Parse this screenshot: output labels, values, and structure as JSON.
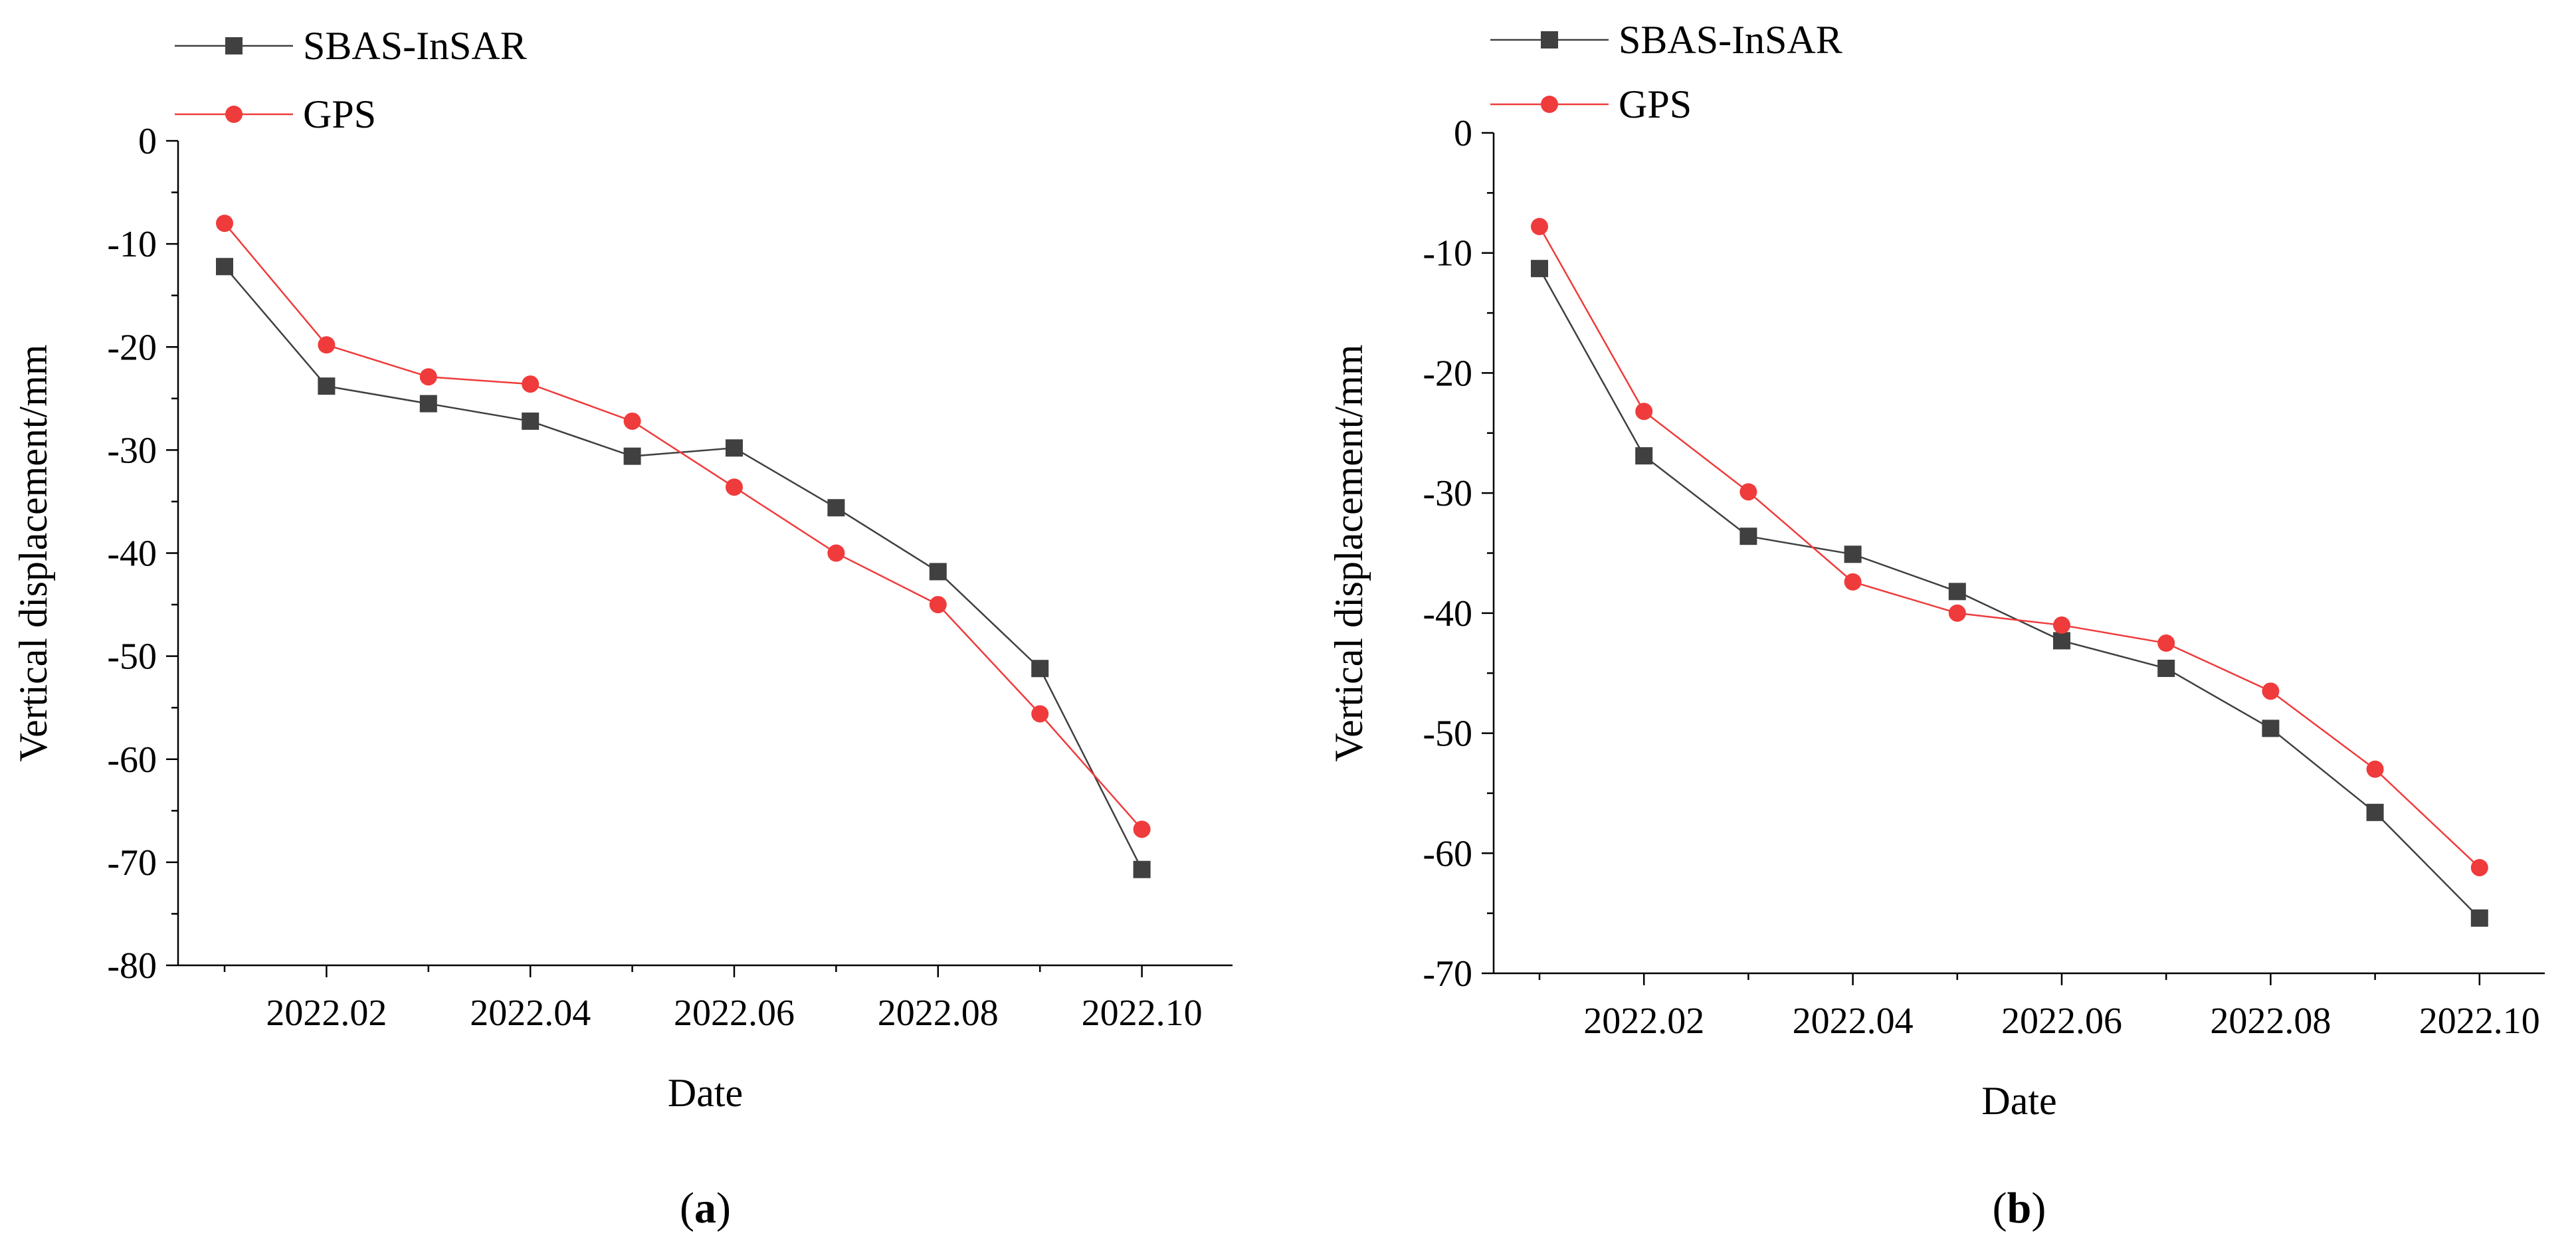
{
  "chart_data": [
    {
      "type": "line",
      "panel_label": "(a)",
      "panel_letter": "a",
      "xlabel": "Date",
      "ylabel": "Vertical displacement/mm",
      "ylim": [
        -80,
        0
      ],
      "yticks": [
        0,
        -10,
        -20,
        -30,
        -40,
        -50,
        -60,
        -70,
        -80
      ],
      "ytick_labels": [
        "0",
        "-10",
        "-20",
        "-30",
        "-40",
        "-50",
        "-60",
        "-70",
        "-80"
      ],
      "x": [
        "2022.01",
        "2022.02",
        "2022.03",
        "2022.04",
        "2022.05",
        "2022.06",
        "2022.07",
        "2022.08",
        "2022.09",
        "2022.10"
      ],
      "xtick_labels": [
        "2022.02",
        "2022.04",
        "2022.06",
        "2022.08",
        "2022.10"
      ],
      "legend_position": "top-left",
      "series": [
        {
          "name": "SBAS-InSAR",
          "color": "#404040",
          "marker": "square",
          "values": [
            -12.2,
            -23.8,
            -25.5,
            -27.2,
            -30.6,
            -29.8,
            -35.6,
            -41.8,
            -51.2,
            -70.7
          ]
        },
        {
          "name": "GPS",
          "color": "#ef3b3b",
          "marker": "circle",
          "values": [
            -8.0,
            -19.8,
            -22.9,
            -23.6,
            -27.2,
            -33.6,
            -40.0,
            -45.0,
            -55.6,
            -66.8
          ]
        }
      ]
    },
    {
      "type": "line",
      "panel_label": "(b)",
      "panel_letter": "b",
      "xlabel": "Date",
      "ylabel": "Vertical displacement/mm",
      "ylim": [
        -70,
        0
      ],
      "yticks": [
        0,
        -10,
        -20,
        -30,
        -40,
        -50,
        -60,
        -70
      ],
      "ytick_labels": [
        "0",
        "-10",
        "-20",
        "-30",
        "-40",
        "-50",
        "-60",
        "-70"
      ],
      "x": [
        "2022.01",
        "2022.02",
        "2022.03",
        "2022.04",
        "2022.05",
        "2022.06",
        "2022.07",
        "2022.08",
        "2022.09",
        "2022.10"
      ],
      "xtick_labels": [
        "2022.02",
        "2022.04",
        "2022.06",
        "2022.08",
        "2022.10"
      ],
      "legend_position": "top-left",
      "series": [
        {
          "name": "SBAS-InSAR",
          "color": "#404040",
          "marker": "square",
          "values": [
            -11.3,
            -26.9,
            -33.6,
            -35.1,
            -38.2,
            -42.3,
            -44.6,
            -49.6,
            -56.6,
            -65.4
          ]
        },
        {
          "name": "GPS",
          "color": "#ef3b3b",
          "marker": "circle",
          "values": [
            -7.8,
            -23.2,
            -29.9,
            -37.4,
            -40.0,
            -41.0,
            -42.5,
            -46.5,
            -53.0,
            -61.2
          ]
        }
      ]
    }
  ]
}
